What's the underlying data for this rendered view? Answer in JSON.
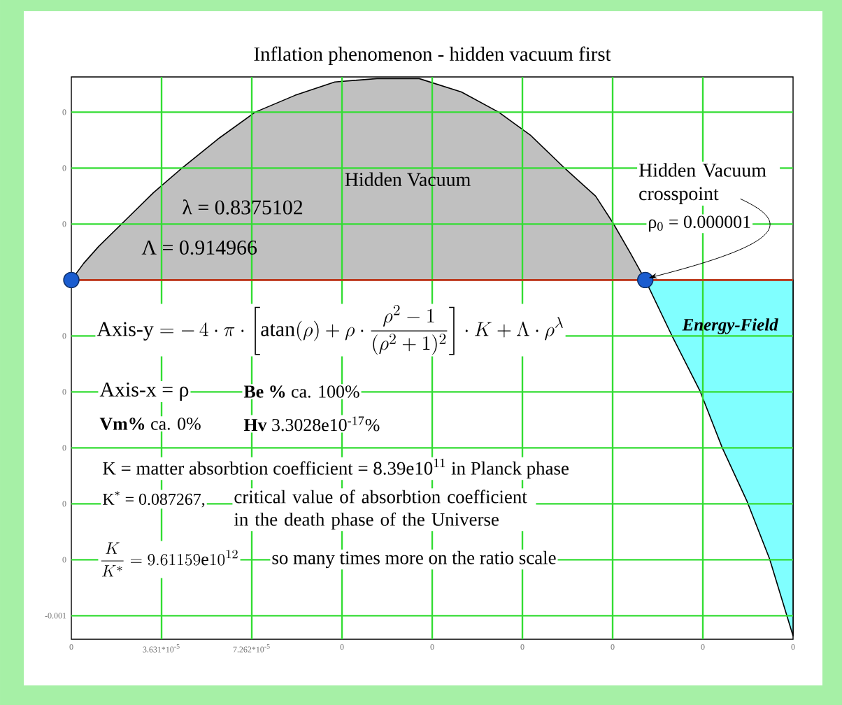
{
  "chart_data": {
    "type": "area",
    "title": "Inflation phenomenon - hidden vacuum first",
    "xlim": [
      0,
      0.00029048
    ],
    "ylim": [
      -0.00107,
      0.000605
    ],
    "xticks": [
      0,
      {
        "value": 3.631e-05,
        "label": "3.631*10$^{-5}$"
      },
      {
        "value": 7.262e-05,
        "label": "7.262*10$^{-5}$"
      },
      {
        "value": 0.00010893,
        "label": "0"
      },
      {
        "value": 0.00014524,
        "label": "0"
      },
      {
        "value": 0.00018155,
        "label": "0"
      },
      {
        "value": 0.00021786,
        "label": "0"
      },
      {
        "value": 0.00025417,
        "label": "0"
      },
      {
        "value": 0.00029048,
        "label": "0"
      }
    ],
    "yticks": [
      -0.001,
      {
        "value": -0.0008333,
        "label": "0"
      },
      {
        "value": -0.0006667,
        "label": "0"
      },
      {
        "value": -0.0005,
        "label": "0"
      },
      {
        "value": -0.0003333,
        "label": "0"
      },
      {
        "value": -0.0001667,
        "label": "0"
      },
      {
        "value": 0,
        "label": null
      },
      {
        "value": 0.0001667,
        "label": "0"
      },
      {
        "value": 0.0003333,
        "label": "0"
      },
      {
        "value": 0.0005,
        "label": "0"
      }
    ],
    "grid": true,
    "series": [
      {
        "name": "Hidden Vacuum",
        "color": "#c0c0c0",
        "x": [
          0,
          5e-06,
          1.1e-05,
          2.2e-05,
          3.3e-05,
          4.4e-05,
          5.9e-05,
          7.4e-05,
          9e-05,
          0.000106,
          0.000123,
          0.00014,
          0.000157,
          0.000172,
          0.000185,
          0.000199,
          0.000211,
          0.000218,
          0.000225,
          0.000231
        ],
        "values": [
          0,
          5e-05,
          0.0001,
          0.00018,
          0.00026,
          0.00033,
          0.00042,
          0.0005,
          0.00055,
          0.00059,
          0.0006,
          0.0006,
          0.00056,
          0.0005,
          0.00043,
          0.00033,
          0.00025,
          0.00017,
          8e-05,
          0
        ]
      },
      {
        "name": "Energy-Field",
        "color": "#80ffff",
        "x": [
          0.000231,
          0.000242,
          0.000253,
          0.000262,
          0.000272,
          0.000281,
          0.00029048
        ],
        "values": [
          0,
          -0.00017,
          -0.00033,
          -0.0005,
          -0.00066,
          -0.00083,
          -0.00106
        ]
      },
      {
        "type": "scatter",
        "marker": "circle",
        "color": "#1a5ccf",
        "x": [
          0,
          0.000231
        ],
        "values": [
          0,
          0
        ]
      }
    ],
    "ref_lines": [
      {
        "axis": "y",
        "value": 0,
        "color": "#e01010"
      }
    ],
    "annotations": [
      "λ = 0.8375102",
      "Λ = 0.914966",
      "\\text{Axis-y} = -\\,4\\cdot\\pi\\cdot\\left[\\operatorname{atan}(\\rho) + \\rho\\cdot\\frac{\\rho^{2}-1}{(\\rho^{2}+1)^{2}}\\right]\\cdot K + \\Lambda\\cdot\\rho^{\\lambda}",
      "Axis-x = ρ",
      "**Be %** ca. 100%",
      "**Vm%** ca. 0%",
      "**Hv** 3.3028e10$^{-17}$%",
      "K = matter absorbtion coefficient = 8.39e10$^{11}$ in Planck phase",
      "K$^{*}$ = 0.087267,",
      "critical value of absorbtion coefficient in the death phase of the Universe",
      "\\frac{K}{K^{*}} = 9.61159\\text{e}10^{12}",
      "so many times more on the ratio scale",
      {
        "text": "Hidden Vacuum crosspoint",
        "x": 0.000231,
        "y": 0
      },
      "ρ$_{0}$ = 0.000001"
    ]
  }
}
